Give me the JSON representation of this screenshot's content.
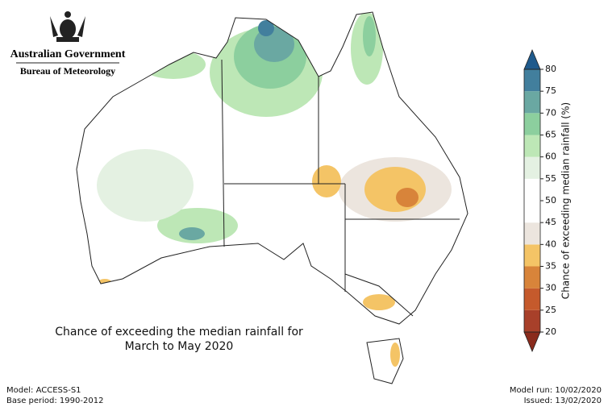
{
  "header": {
    "government": "Australian Government",
    "bureau": "Bureau of Meteorology"
  },
  "title": {
    "line1": "Chance of exceeding the median rainfall for",
    "line2": "March to May 2020"
  },
  "colorbar": {
    "label": "Chance of exceeding median rainfall (%)",
    "ticks": [
      20,
      25,
      30,
      35,
      40,
      45,
      50,
      55,
      60,
      65,
      70,
      75,
      80
    ],
    "colors": [
      "#a8402a",
      "#c55a2c",
      "#d8843a",
      "#f4c466",
      "#ece5de",
      "#ffffff",
      "#ffffff",
      "#e4f1e2",
      "#bde7b6",
      "#8ccf9e",
      "#6aa8a2",
      "#427f9d"
    ],
    "extend_colors": [
      "#8a2b1c",
      "#1f5a8c"
    ]
  },
  "footer": {
    "model": "Model: ACCESS-S1",
    "base_period": "Base period: 1990-2012",
    "model_run": "Model run: 10/02/2020",
    "issued": "Issued: 13/02/2020"
  }
}
